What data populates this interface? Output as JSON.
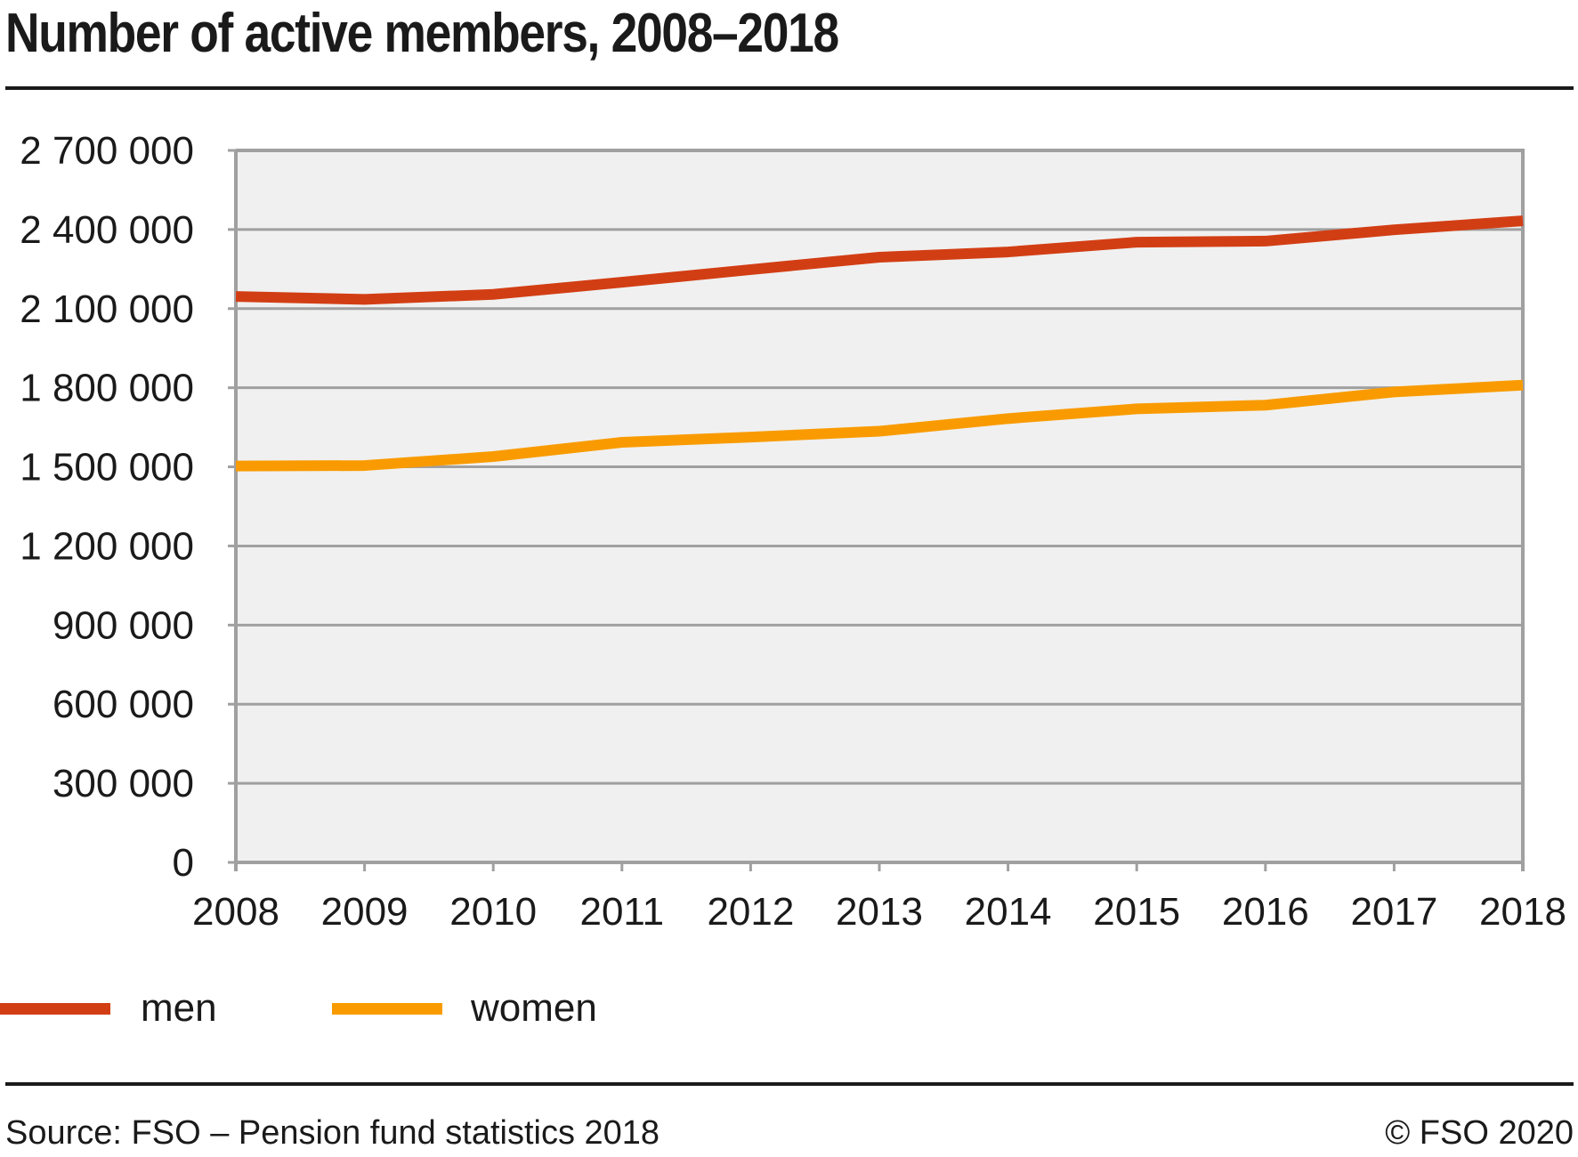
{
  "title": "Number of active members, 2008–2018",
  "footer": {
    "source": "Source: FSO – Pension fund statistics 2018",
    "copyright": "© FSO 2020"
  },
  "colors": {
    "men": "#D23E14",
    "women": "#F99B00",
    "grid": "#A0A0A0",
    "plot_background": "#F0F0F0"
  },
  "chart_data": {
    "type": "line",
    "title": "Number of active members, 2008–2018",
    "xlabel": "",
    "ylabel": "",
    "x": [
      "2008",
      "2009",
      "2010",
      "2011",
      "2012",
      "2013",
      "2014",
      "2015",
      "2016",
      "2017",
      "2018"
    ],
    "ylim": [
      0,
      2700000
    ],
    "yticks": [
      0,
      300000,
      600000,
      900000,
      1200000,
      1500000,
      1800000,
      2100000,
      2400000,
      2700000
    ],
    "ytick_labels": [
      "0",
      "300 000",
      "600 000",
      "900 000",
      "1 200 000",
      "1 500 000",
      "1 800 000",
      "2 100 000",
      "2 400 000",
      "2 700 000"
    ],
    "grid": true,
    "legend_position": "bottom-left",
    "series": [
      {
        "name": "men",
        "color": "#D23E14",
        "values": [
          2146000,
          2135000,
          2154000,
          2200000,
          2248000,
          2295000,
          2315000,
          2352000,
          2356000,
          2399000,
          2433000
        ]
      },
      {
        "name": "women",
        "color": "#F99B00",
        "values": [
          1503000,
          1505000,
          1539000,
          1593000,
          1613000,
          1635000,
          1683000,
          1720000,
          1734000,
          1784000,
          1810000
        ]
      }
    ]
  }
}
